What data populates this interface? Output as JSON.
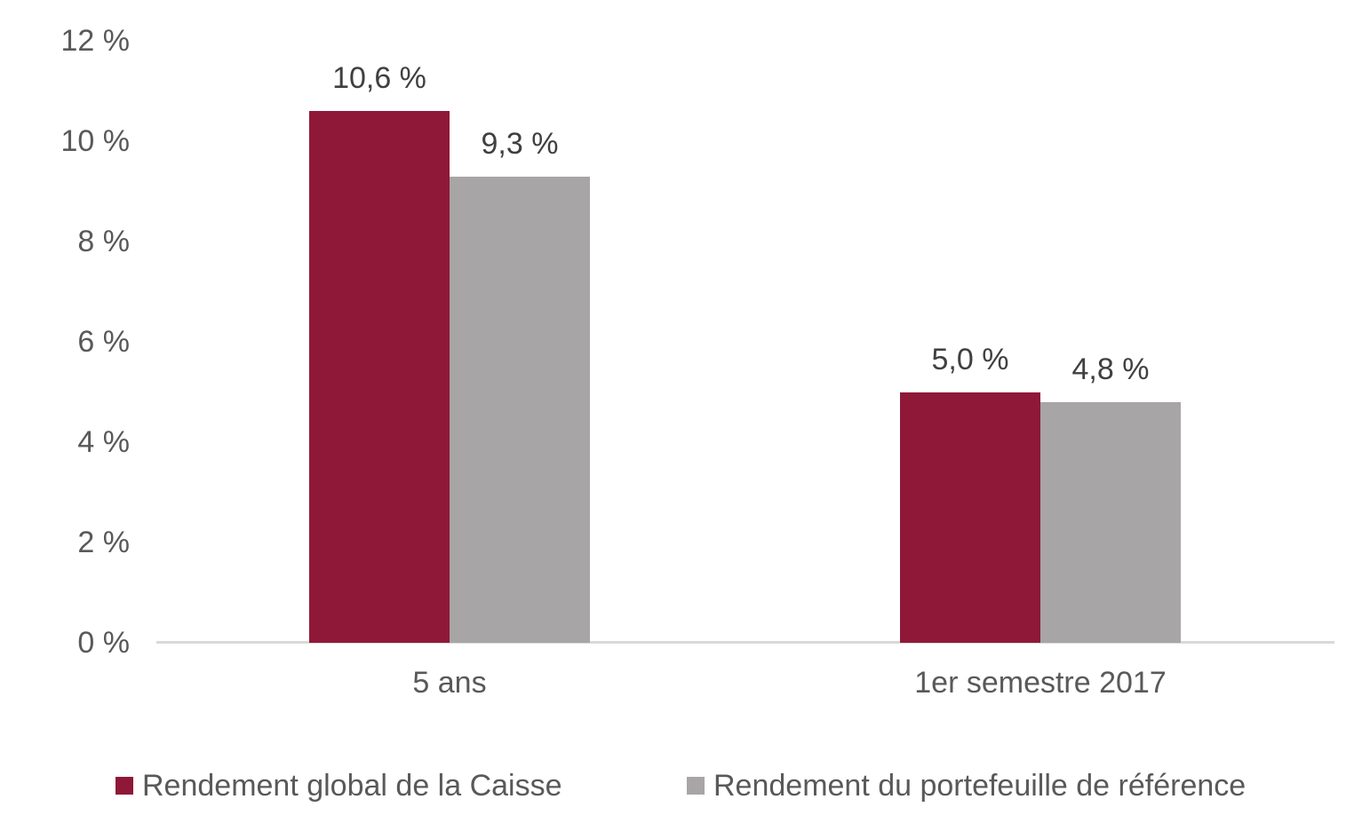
{
  "chart_data": {
    "type": "bar",
    "title": "",
    "xlabel": "",
    "ylabel": "",
    "ylim": [
      0,
      12
    ],
    "grid": false,
    "legend_position": "bottom",
    "categories": [
      "5 ans",
      "1er semestre 2017"
    ],
    "series": [
      {
        "name": "Rendement global de la Caisse",
        "values": [
          10.6,
          5.0
        ],
        "labels": [
          "10,6 %",
          "5,0 %"
        ],
        "color": "#8F1838"
      },
      {
        "name": "Rendement du portefeuille de référence",
        "values": [
          9.3,
          4.8
        ],
        "labels": [
          "9,3 %",
          "4,8 %"
        ],
        "color": "#A7A5A6"
      }
    ],
    "y_ticks": [
      "0 %",
      "2 %",
      "4 %",
      "6 %",
      "8 %",
      "10 %",
      "12 %"
    ]
  }
}
